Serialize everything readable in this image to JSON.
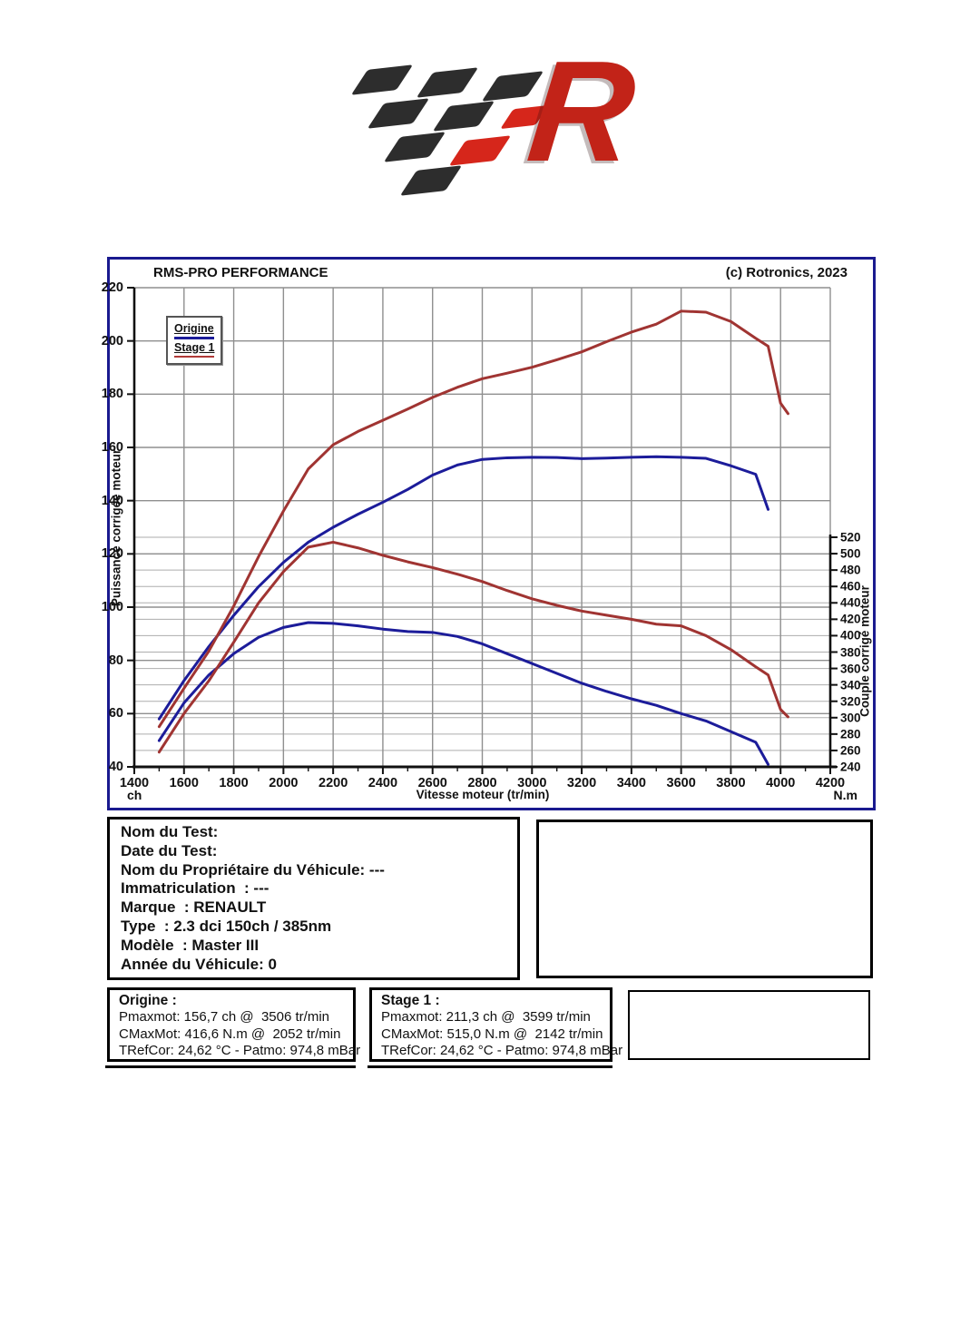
{
  "logo": {
    "letter": "R"
  },
  "chart": {
    "title": "RMS-PRO PERFORMANCE",
    "copyright": "(c) Rotronics, 2023",
    "y_left_label": "Puissance corrigée moteur",
    "y_right_label": "Couple corrigé moteur",
    "x_label": "Vitesse moteur (tr/min)",
    "x_unit_left": "ch",
    "x_unit_right": "N.m",
    "legend_items": [
      {
        "label": "Origine",
        "color": "#1c1c9a"
      },
      {
        "label": "Stage 1",
        "color": "#b03a38"
      }
    ],
    "colors": {
      "frame": "#1a1a8f",
      "origine": "#1c1c9a",
      "stage1": "#a03432",
      "grid_major": "#8f8f8f",
      "grid_minor": "#adadad",
      "axis": "#111111"
    }
  },
  "chart_data": {
    "type": "line",
    "title": "RMS-PRO PERFORMANCE",
    "x_axis": {
      "label": "Vitesse moteur (tr/min)",
      "min": 1400,
      "max": 4200,
      "tick_step": 200,
      "minor_tick_step": 100
    },
    "y_left_axis": {
      "label": "Puissance corrigée moteur",
      "unit": "ch",
      "min": 40,
      "max": 220,
      "tick_step": 20
    },
    "y_right_axis": {
      "label": "Couple corrigé moteur",
      "unit": "N.m",
      "min": 240,
      "max": 520,
      "tick_step": 20
    },
    "grid": true,
    "legend_position": "top-left",
    "series": [
      {
        "name": "Origine - Puissance (ch)",
        "axis": "left",
        "color": "#1c1c9a",
        "x": [
          1500,
          1600,
          1700,
          1800,
          1900,
          2000,
          2100,
          2200,
          2300,
          2400,
          2500,
          2600,
          2700,
          2800,
          2900,
          3000,
          3100,
          3200,
          3300,
          3400,
          3500,
          3600,
          3700,
          3800,
          3900,
          3950
        ],
        "y": [
          58,
          72.4,
          85.2,
          96.9,
          107.7,
          116.8,
          124.4,
          130,
          134.9,
          139.4,
          144.2,
          149.6,
          153.4,
          155.5,
          156.1,
          156.3,
          156.2,
          155.8,
          156,
          156.3,
          156.5,
          156.3,
          155.9,
          153.1,
          149.9,
          136.7
        ]
      },
      {
        "name": "Stage 1 - Puissance (ch)",
        "axis": "left",
        "color": "#a03432",
        "x": [
          1500,
          1600,
          1700,
          1800,
          1900,
          2000,
          2100,
          2200,
          2300,
          2400,
          2500,
          2600,
          2700,
          2800,
          2900,
          3000,
          3100,
          3200,
          3300,
          3400,
          3500,
          3600,
          3700,
          3800,
          3900,
          3950,
          4000,
          4030
        ],
        "y": [
          55.1,
          69.5,
          83.5,
          100.4,
          119,
          136.1,
          151.9,
          161,
          166,
          170.2,
          174.4,
          178.8,
          182.6,
          185.8,
          187.9,
          190.1,
          192.9,
          195.9,
          199.7,
          203.3,
          206.3,
          211.2,
          210.8,
          207.3,
          201,
          198,
          176.6,
          172.7
        ]
      },
      {
        "name": "Origine - Couple (N.m)",
        "axis": "right",
        "color": "#1c1c9a",
        "x": [
          1500,
          1600,
          1700,
          1800,
          1900,
          2000,
          2100,
          2200,
          2300,
          2400,
          2500,
          2600,
          2700,
          2800,
          2900,
          3000,
          3100,
          3200,
          3300,
          3400,
          3500,
          3600,
          3700,
          3800,
          3900,
          3950
        ],
        "y": [
          272,
          318,
          352,
          378,
          398,
          410,
          416,
          415,
          412,
          408,
          405,
          404,
          399,
          390,
          378,
          366,
          354,
          342,
          332,
          323,
          315,
          305,
          296,
          283,
          270,
          243
        ]
      },
      {
        "name": "Stage 1 - Couple (N.m)",
        "axis": "right",
        "color": "#a03432",
        "x": [
          1500,
          1600,
          1700,
          1800,
          1900,
          2000,
          2100,
          2200,
          2300,
          2400,
          2500,
          2600,
          2700,
          2800,
          2900,
          3000,
          3100,
          3200,
          3300,
          3400,
          3500,
          3600,
          3700,
          3800,
          3900,
          3950,
          4000,
          4030
        ],
        "y": [
          258,
          305,
          345,
          392,
          440,
          478,
          508,
          514,
          507,
          498,
          490,
          483,
          475,
          466,
          455,
          445,
          437,
          430,
          425,
          420,
          414,
          412,
          400,
          383,
          362,
          352,
          310,
          301
        ]
      }
    ],
    "key_points": {
      "origine": {
        "pmax_ch": "156,7",
        "pmax_rpm": "3506",
        "cmax_nm": "416,6",
        "cmax_rpm": "2052"
      },
      "stage1": {
        "pmax_ch": "211,3",
        "pmax_rpm": "3599",
        "cmax_nm": "515,0",
        "cmax_rpm": "2142"
      }
    }
  },
  "vehicle_info": {
    "lines": [
      "Nom du Test:",
      "Date du Test:",
      "Nom du Propriétaire du Véhicule: ---",
      "Immatriculation  : ---",
      "Marque  : RENAULT",
      "Type  : 2.3 dci 150ch / 385nm",
      "Modèle  : Master III",
      "Année du Véhicule: 0"
    ]
  },
  "origine_box": {
    "title": "Origine :",
    "lines": [
      "Pmaxmot: 156,7 ch @  3506 tr/min",
      "CMaxMot: 416,6 N.m @  2052 tr/min",
      "TRefCor: 24,62 °C - Patmo: 974,8 mBar"
    ]
  },
  "stage1_box": {
    "title": "Stage 1 :",
    "lines": [
      "Pmaxmot: 211,3 ch @  3599 tr/min",
      "CMaxMot: 515,0 N.m @  2142 tr/min",
      "TRefCor: 24,62 °C - Patmo: 974,8 mBar"
    ]
  }
}
